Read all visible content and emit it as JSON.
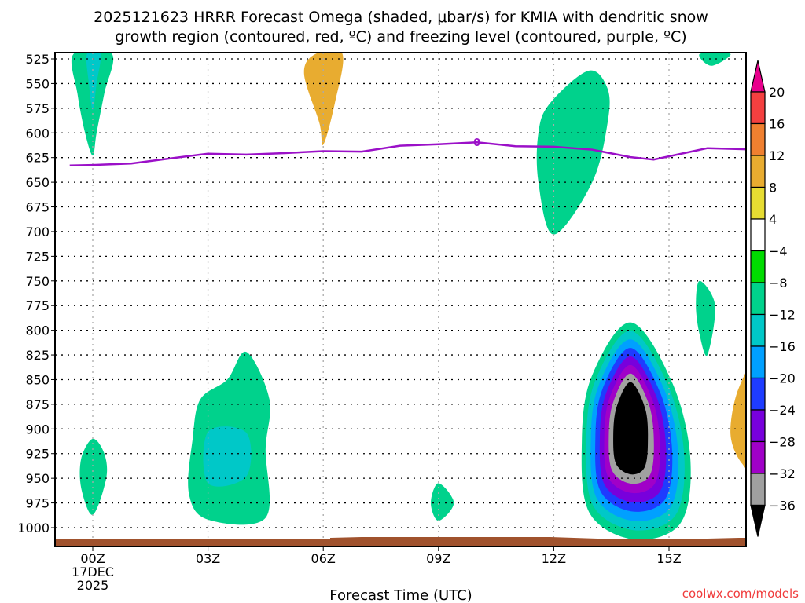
{
  "chart_data": {
    "type": "heatmap",
    "title_lines": [
      "2025121623 HRRR Forecast Omega (shaded, μbar/s) for KMIA with dendritic snow",
      "growth region (contoured, red, ºC) and freezing level (contoured, purple, ºC)"
    ],
    "xlabel": "Forecast Time (UTC)",
    "ylabel": "",
    "credit": "coolwx.com/models",
    "x_range_hours": [
      -0.6,
      17.3
    ],
    "x_ticks": [
      {
        "hour": 0,
        "label": "00Z",
        "sublabels": [
          "17DEC",
          "2025"
        ]
      },
      {
        "hour": 3,
        "label": "03Z",
        "sublabels": []
      },
      {
        "hour": 6,
        "label": "06Z",
        "sublabels": []
      },
      {
        "hour": 9,
        "label": "09Z",
        "sublabels": []
      },
      {
        "hour": 12,
        "label": "12Z",
        "sublabels": []
      },
      {
        "hour": 15,
        "label": "15Z",
        "sublabels": []
      }
    ],
    "y_range_mb": [
      520,
      1033
    ],
    "y_ticks": [
      525,
      550,
      575,
      600,
      625,
      650,
      675,
      700,
      725,
      750,
      775,
      800,
      825,
      850,
      875,
      900,
      925,
      950,
      975,
      1000
    ],
    "grid": true,
    "colorbar": {
      "units": "μbar/s",
      "labels": [
        "20",
        "16",
        "12",
        "8",
        "4",
        "−4",
        "−8",
        "−12",
        "−16",
        "−20",
        "−24",
        "−28",
        "−32",
        "−36"
      ],
      "levels": [
        {
          "range": [
            20,
            null
          ],
          "color": "#e8008c"
        },
        {
          "range": [
            16,
            20
          ],
          "color": "#f44040"
        },
        {
          "range": [
            12,
            16
          ],
          "color": "#f08030"
        },
        {
          "range": [
            8,
            12
          ],
          "color": "#e8ac30"
        },
        {
          "range": [
            4,
            8
          ],
          "color": "#e6dc32"
        },
        {
          "range": [
            -4,
            4
          ],
          "color": "#ffffff"
        },
        {
          "range": [
            -8,
            -4
          ],
          "color": "#00dc00"
        },
        {
          "range": [
            -12,
            -8
          ],
          "color": "#00d28c"
        },
        {
          "range": [
            -16,
            -12
          ],
          "color": "#00c8c8"
        },
        {
          "range": [
            -20,
            -16
          ],
          "color": "#00a0ff"
        },
        {
          "range": [
            -24,
            -20
          ],
          "color": "#1e3cff"
        },
        {
          "range": [
            -28,
            -24
          ],
          "color": "#7800dc"
        },
        {
          "range": [
            -32,
            -28
          ],
          "color": "#a000c8"
        },
        {
          "range": [
            -36,
            -32
          ],
          "color": "#a0a0a0"
        },
        {
          "range": [
            null,
            -36
          ],
          "color": "#000000"
        }
      ]
    },
    "freezing_level": {
      "label": "0",
      "color": "#9b10c8",
      "points_hour_mb": [
        [
          -0.6,
          633
        ],
        [
          0,
          632.5
        ],
        [
          1,
          631
        ],
        [
          2,
          626
        ],
        [
          3,
          621
        ],
        [
          4,
          622
        ],
        [
          5,
          620.5
        ],
        [
          6,
          618.5
        ],
        [
          7,
          619
        ],
        [
          8,
          613
        ],
        [
          9,
          611.5
        ],
        [
          10,
          609.5
        ],
        [
          11,
          613.5
        ],
        [
          12,
          614
        ],
        [
          13,
          617
        ],
        [
          14,
          624.5
        ],
        [
          14.6,
          627
        ],
        [
          16,
          615.5
        ],
        [
          17.3,
          617
        ]
      ]
    },
    "omega_regions": [
      {
        "level": "-8",
        "hour_mb": [
          [
            -0.5,
            520
          ],
          [
            0.5,
            520
          ],
          [
            0.3,
            560
          ],
          [
            0.1,
            600
          ],
          [
            0,
            623
          ],
          [
            -0.2,
            600
          ],
          [
            -0.4,
            560
          ]
        ]
      },
      {
        "level": "-12",
        "hour_mb": [
          [
            -0.15,
            520
          ],
          [
            0.2,
            520
          ],
          [
            0.1,
            550
          ],
          [
            0,
            577
          ],
          [
            -0.1,
            550
          ]
        ]
      },
      {
        "level": "4",
        "hour_mb": [
          [
            1.05,
            580
          ],
          [
            1.15,
            605
          ],
          [
            1.05,
            630
          ],
          [
            0.95,
            605
          ]
        ]
      },
      {
        "level": "4",
        "hour_mb": [
          [
            4.8,
            520
          ],
          [
            7.1,
            520
          ],
          [
            7,
            600
          ],
          [
            6.7,
            660
          ],
          [
            6,
            703
          ],
          [
            5.4,
            640
          ],
          [
            5,
            580
          ]
        ]
      },
      {
        "level": "8",
        "hour_mb": [
          [
            5.8,
            520
          ],
          [
            6.5,
            520
          ],
          [
            6.3,
            570
          ],
          [
            6,
            612
          ],
          [
            5.9,
            590
          ],
          [
            5.5,
            540
          ]
        ]
      },
      {
        "level": "-8",
        "hour_mb": [
          [
            12.9,
            537
          ],
          [
            13.4,
            555
          ],
          [
            13.4,
            590
          ],
          [
            13,
            650
          ],
          [
            12,
            703
          ],
          [
            11.6,
            650
          ],
          [
            11.6,
            600
          ],
          [
            11.9,
            570
          ]
        ]
      },
      {
        "level": "4",
        "hour_mb": [
          [
            13.9,
            600
          ],
          [
            16,
            585
          ],
          [
            16.3,
            615
          ],
          [
            16.3,
            650
          ],
          [
            15.5,
            710
          ],
          [
            15.1,
            730
          ],
          [
            14.5,
            735
          ],
          [
            14.4,
            775
          ],
          [
            14.4,
            750
          ],
          [
            14,
            730
          ],
          [
            13.7,
            705
          ],
          [
            14.3,
            660
          ],
          [
            14.6,
            625
          ]
        ]
      },
      {
        "level": "-8",
        "hour_mb": [
          [
            15.8,
            520
          ],
          [
            16.6,
            520
          ],
          [
            16.1,
            532
          ]
        ]
      },
      {
        "level": "4",
        "hour_mb": [
          [
            11,
            805
          ],
          [
            11.6,
            795
          ],
          [
            12.1,
            800
          ],
          [
            12.1,
            860
          ],
          [
            11.8,
            895
          ],
          [
            11.4,
            860
          ],
          [
            11.1,
            830
          ]
        ]
      },
      {
        "level": "4",
        "hour_mb": [
          [
            12.8,
            930
          ],
          [
            13,
            925
          ],
          [
            13,
            985
          ],
          [
            12.7,
            960
          ]
        ]
      },
      {
        "level": "-8",
        "hour_mb": [
          [
            0,
            910
          ],
          [
            0.3,
            925
          ],
          [
            0.35,
            950
          ],
          [
            0,
            987
          ],
          [
            -0.3,
            960
          ],
          [
            -0.3,
            930
          ]
        ]
      },
      {
        "level": "-8",
        "hour_mb": [
          [
            2.8,
            870
          ],
          [
            3.5,
            850
          ],
          [
            4,
            822
          ],
          [
            4.6,
            870
          ],
          [
            4.5,
            920
          ],
          [
            4.5,
            990
          ],
          [
            3,
            992
          ],
          [
            2.5,
            965
          ],
          [
            2.6,
            910
          ]
        ]
      },
      {
        "level": "-12",
        "hour_mb": [
          [
            3,
            903
          ],
          [
            4,
            904
          ],
          [
            4,
            948
          ],
          [
            3,
            955
          ]
        ]
      },
      {
        "level": "4",
        "hour_mb": [
          [
            6,
            855
          ],
          [
            6.4,
            870
          ],
          [
            6.4,
            940
          ],
          [
            5.9,
            980
          ],
          [
            5.4,
            950
          ],
          [
            5.7,
            900
          ]
        ]
      },
      {
        "level": "-8",
        "hour_mb": [
          [
            9,
            955
          ],
          [
            9.4,
            975
          ],
          [
            9,
            993
          ],
          [
            8.8,
            975
          ]
        ]
      },
      {
        "level": "-8",
        "hour_mb": [
          [
            15.8,
            750
          ],
          [
            16.2,
            775
          ],
          [
            16,
            825
          ],
          [
            15.8,
            805
          ],
          [
            15.7,
            775
          ]
        ]
      },
      {
        "level": "4",
        "hour_mb": [
          [
            17.3,
            810
          ],
          [
            17.3,
            960
          ],
          [
            16.8,
            960
          ],
          [
            16.2,
            1000
          ],
          [
            16,
            960
          ],
          [
            16.2,
            900
          ],
          [
            16.5,
            860
          ],
          [
            17,
            825
          ]
        ]
      },
      {
        "level": "8",
        "hour_mb": [
          [
            17.3,
            835
          ],
          [
            17.3,
            940
          ],
          [
            16.9,
            935
          ],
          [
            16.6,
            905
          ],
          [
            16.8,
            860
          ]
        ]
      },
      {
        "level": "12",
        "hour_mb": [
          [
            17.3,
            860
          ],
          [
            17.3,
            905
          ],
          [
            17.2,
            880
          ]
        ]
      }
    ],
    "omega_minimum_core": {
      "center_hour_mb": [
        14,
        902
      ],
      "levels_outer_to_inner": [
        "-8",
        "-12",
        "-16",
        "-20",
        "-24",
        "-28",
        "-32",
        "-36"
      ]
    },
    "terrain_color": "#a0522d"
  }
}
